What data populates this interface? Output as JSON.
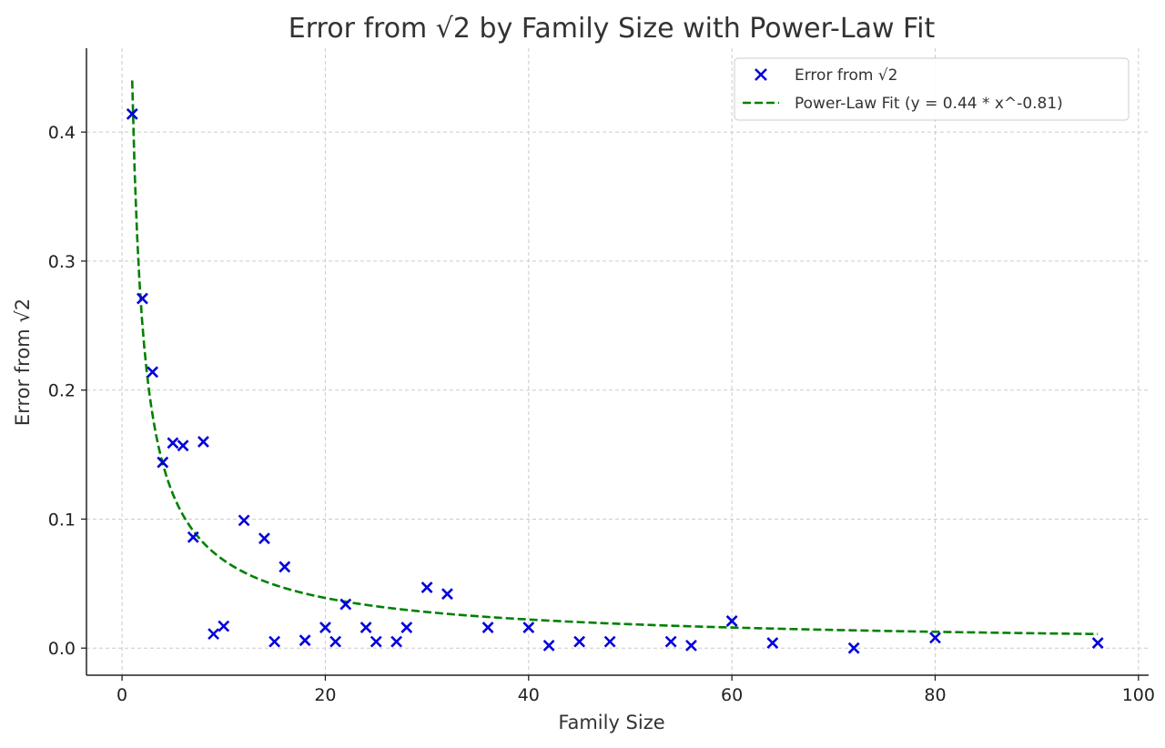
{
  "chart_data": {
    "type": "scatter",
    "title": "Error from √2 by Family Size with Power-Law Fit",
    "xlabel": "Family Size",
    "ylabel": "Error from √2",
    "xlim": [
      -3.5,
      101
    ],
    "ylim": [
      -0.021,
      0.465
    ],
    "xticks": [
      0,
      20,
      40,
      60,
      80,
      100
    ],
    "xtick_labels": [
      "0",
      "20",
      "40",
      "60",
      "80",
      "100"
    ],
    "yticks": [
      0.0,
      0.1,
      0.2,
      0.3,
      0.4
    ],
    "ytick_labels": [
      "0.0",
      "0.1",
      "0.2",
      "0.3",
      "0.4"
    ],
    "grid": true,
    "legend_position": "top-right",
    "colors": {
      "points": "#0000dd",
      "fit": "#008000",
      "grid": "#cccccc"
    },
    "series": [
      {
        "name": "Error from √2",
        "kind": "scatter",
        "marker": "x",
        "x": [
          1,
          2,
          3,
          4,
          5,
          6,
          7,
          8,
          9,
          10,
          12,
          14,
          15,
          16,
          18,
          20,
          21,
          22,
          24,
          25,
          27,
          28,
          30,
          32,
          36,
          40,
          42,
          45,
          48,
          54,
          56,
          60,
          64,
          72,
          80,
          96
        ],
        "y": [
          0.414,
          0.271,
          0.214,
          0.144,
          0.159,
          0.157,
          0.086,
          0.16,
          0.011,
          0.017,
          0.099,
          0.085,
          0.005,
          0.063,
          0.006,
          0.016,
          0.005,
          0.034,
          0.016,
          0.005,
          0.005,
          0.016,
          0.047,
          0.042,
          0.016,
          0.016,
          0.002,
          0.005,
          0.005,
          0.005,
          0.002,
          0.021,
          0.004,
          0.0,
          0.008,
          0.004
        ]
      },
      {
        "name": "Power-Law Fit (y = 0.44 * x^-0.81)",
        "kind": "line",
        "dash": "dashed",
        "fit": {
          "a": 0.44,
          "b": -0.81,
          "x_start": 1,
          "x_end": 96
        }
      }
    ]
  }
}
